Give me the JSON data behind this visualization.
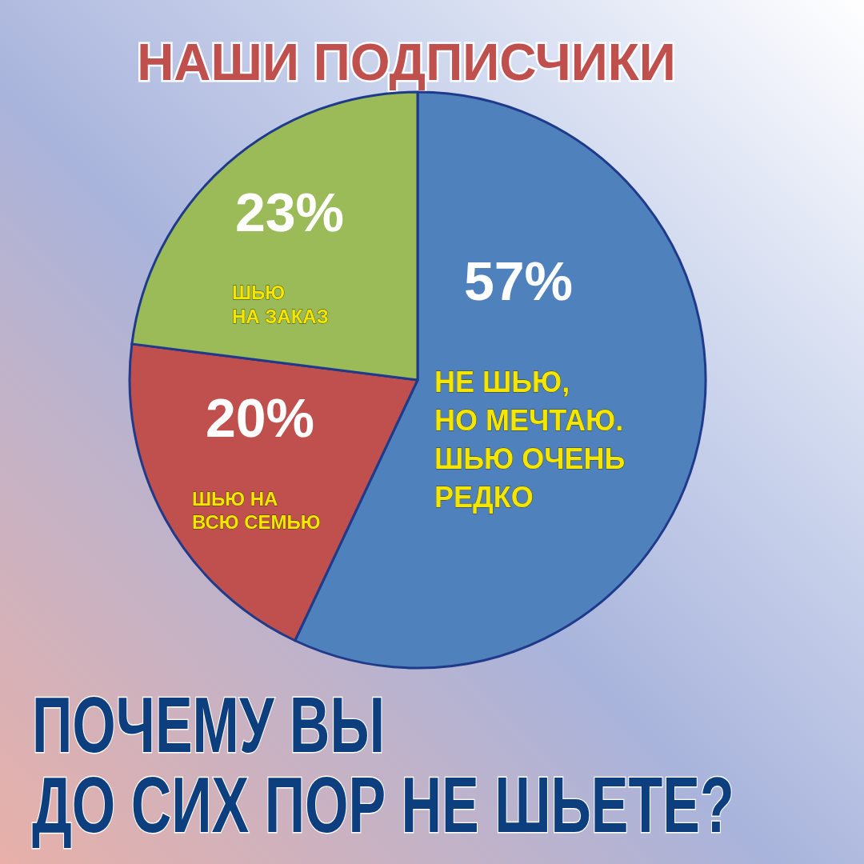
{
  "chart_data": {
    "type": "pie",
    "title": "НАШИ ПОДПИСЧИКИ",
    "subtitle": "ПОЧЕМУ ВЫ\nДО СИХ ПОР НЕ ШЬЕТЕ?",
    "categories": [
      "НЕ ШЬЮ,\nНО МЕЧТАЮ.\nШЬЮ ОЧЕНЬ\nРЕДКО",
      "ШЬЮ НА\nВСЮ СЕМЬЮ",
      "ШЬЮ\nНА ЗАКАЗ"
    ],
    "values": [
      57,
      20,
      23
    ],
    "value_labels": [
      "57%",
      "20%",
      "23%"
    ],
    "colors": [
      "#4f81bd",
      "#c0504d",
      "#9bbb59"
    ]
  }
}
